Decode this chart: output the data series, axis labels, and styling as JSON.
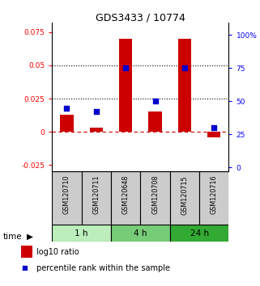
{
  "title": "GDS3433 / 10774",
  "samples": [
    "GSM120710",
    "GSM120711",
    "GSM120648",
    "GSM120708",
    "GSM120715",
    "GSM120716"
  ],
  "groups": [
    {
      "label": "1 h",
      "indices": [
        0,
        1
      ],
      "color": "#bbeebb"
    },
    {
      "label": "4 h",
      "indices": [
        2,
        3
      ],
      "color": "#77cc77"
    },
    {
      "label": "24 h",
      "indices": [
        4,
        5
      ],
      "color": "#33aa33"
    }
  ],
  "log10_ratio": [
    0.013,
    0.003,
    0.07,
    0.015,
    0.07,
    -0.004
  ],
  "percentile_pct": [
    45,
    42,
    75,
    50,
    75,
    30
  ],
  "ylim_left": [
    -0.03,
    0.082
  ],
  "ylim_right": [
    -3.0,
    109
  ],
  "yticks_left": [
    -0.025,
    0.0,
    0.025,
    0.05,
    0.075
  ],
  "yticks_right": [
    0,
    25,
    50,
    75,
    100
  ],
  "ytick_labels_left": [
    "-0.025",
    "0",
    "0.025",
    "0.05",
    "0.075"
  ],
  "ytick_labels_right": [
    "0",
    "25",
    "50",
    "75",
    "100%"
  ],
  "hlines": [
    0.025,
    0.05
  ],
  "bar_color": "#cc0000",
  "dot_color": "#0000cc",
  "zero_line_color": "#cc0000",
  "hline_color": "#000000",
  "sample_bg_color": "#cccccc",
  "legend_bar_label": "log10 ratio",
  "legend_dot_label": "percentile rank within the sample",
  "fig_width": 3.21,
  "fig_height": 3.54,
  "dpi": 100
}
